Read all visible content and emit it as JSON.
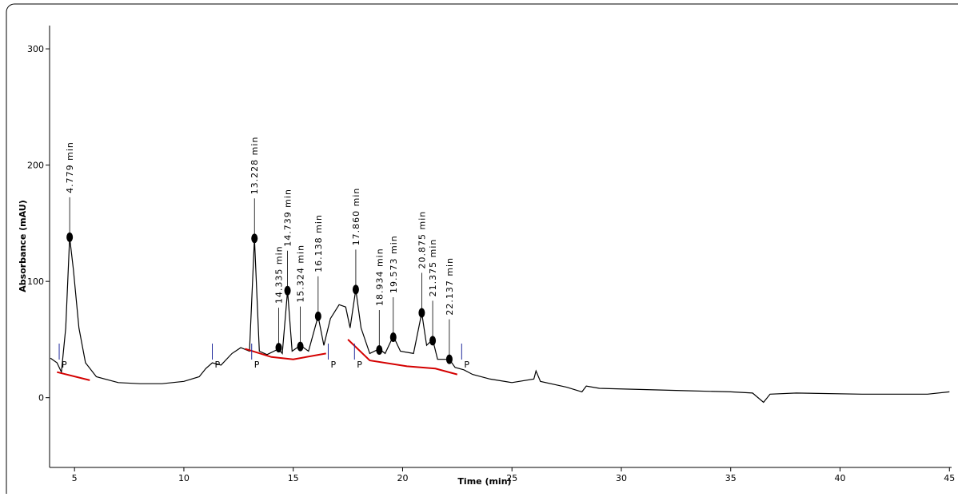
{
  "chart_data": {
    "type": "line",
    "xlabel": "Time (min)",
    "ylabel": "Absorbance (mAU)",
    "xlim": [
      3.86,
      45.1
    ],
    "ylim": [
      -60,
      320
    ],
    "xticks": [
      5,
      10,
      15,
      20,
      25,
      30,
      35,
      40,
      45
    ],
    "yticks": [
      0,
      100,
      200,
      300
    ],
    "series": [
      {
        "color": "#000000",
        "x": [
          3.9,
          4.2,
          4.4,
          4.6,
          4.779,
          4.95,
          5.2,
          5.5,
          6.0,
          7,
          8,
          9,
          10,
          10.7,
          11.0,
          11.3,
          11.7,
          12.2,
          12.6,
          13.0,
          13.228,
          13.45,
          13.8,
          14.335,
          14.5,
          14.739,
          14.95,
          15.324,
          15.7,
          16.138,
          16.4,
          16.7,
          17.1,
          17.4,
          17.6,
          17.86,
          18.1,
          18.5,
          18.934,
          19.2,
          19.573,
          19.9,
          20.5,
          20.875,
          21.1,
          21.375,
          21.6,
          22.137,
          22.4,
          22.8,
          23.2,
          24,
          25,
          26,
          26.1,
          26.3,
          27.5,
          28.2,
          28.4,
          29,
          31,
          33,
          35,
          36,
          36.5,
          36.8,
          38,
          41,
          44,
          45
        ],
        "values": [
          34,
          30,
          22,
          60,
          138,
          110,
          60,
          30,
          18,
          13,
          12,
          12,
          14,
          18,
          25,
          30,
          28,
          38,
          43,
          40,
          137,
          40,
          37,
          42,
          38,
          92,
          40,
          45,
          40,
          70,
          45,
          68,
          80,
          78,
          60,
          93,
          60,
          38,
          42,
          38,
          53,
          40,
          38,
          73,
          45,
          50,
          33,
          33,
          26,
          24,
          20,
          16,
          13,
          16,
          23,
          14,
          9,
          5,
          10,
          8,
          7,
          6,
          5,
          4,
          -4,
          3,
          4,
          3,
          3,
          5
        ]
      },
      {
        "color": "#d40000",
        "x": [
          4.2,
          5.7,
          null,
          12.8,
          14,
          15,
          16.5,
          null,
          17.5,
          18.5,
          20.2,
          21.5,
          22.5
        ],
        "values": [
          22,
          15,
          null,
          42,
          35,
          33,
          38,
          null,
          50,
          32,
          27,
          25,
          20
        ]
      }
    ],
    "peaks": [
      {
        "x": 4.779,
        "y": 138,
        "label": "4.779 min"
      },
      {
        "x": 13.228,
        "y": 137,
        "label": "13.228 min"
      },
      {
        "x": 14.335,
        "y": 43,
        "label": "14.335 min"
      },
      {
        "x": 14.739,
        "y": 92,
        "label": "14.739 min"
      },
      {
        "x": 15.324,
        "y": 44,
        "label": "15.324 min"
      },
      {
        "x": 16.138,
        "y": 70,
        "label": "16.138 min"
      },
      {
        "x": 17.86,
        "y": 93,
        "label": "17.860 min"
      },
      {
        "x": 18.934,
        "y": 41,
        "label": "18.934 min"
      },
      {
        "x": 19.573,
        "y": 52,
        "label": "19.573 min"
      },
      {
        "x": 20.875,
        "y": 73,
        "label": "20.875 min"
      },
      {
        "x": 21.375,
        "y": 49,
        "label": "21.375 min"
      },
      {
        "x": 22.137,
        "y": 33,
        "label": "22.137 min"
      }
    ],
    "markers": [
      {
        "x": 4.3,
        "label": "P"
      },
      {
        "x": 11.3,
        "label": "P"
      },
      {
        "x": 13.1,
        "label": "P"
      },
      {
        "x": 16.6,
        "label": "P"
      },
      {
        "x": 17.8,
        "label": "P"
      },
      {
        "x": 22.7,
        "label": "P"
      }
    ]
  }
}
